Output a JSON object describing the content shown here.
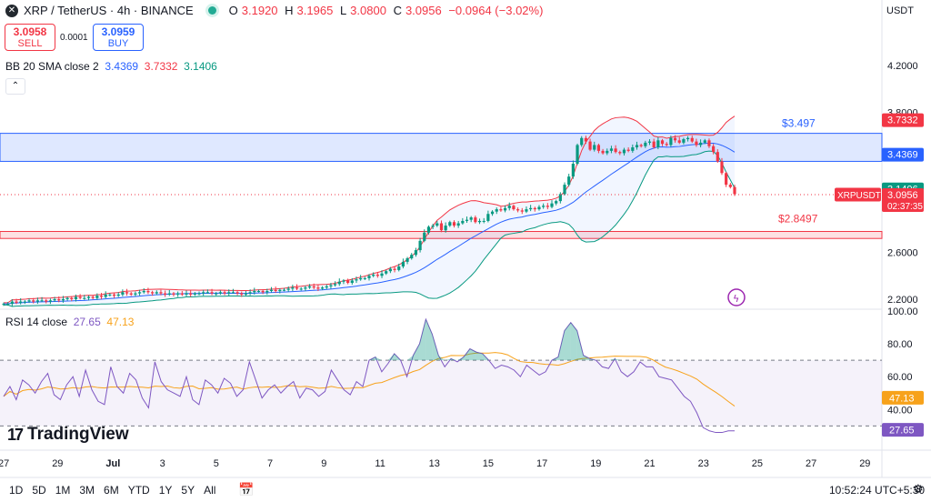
{
  "header": {
    "symbol_icon": "x-icon",
    "title": "XRP / TetherUS · 4h · BINANCE",
    "ohlc": [
      {
        "k": "O",
        "v": "3.1920"
      },
      {
        "k": "H",
        "v": "3.1965"
      },
      {
        "k": "L",
        "v": "3.0800"
      },
      {
        "k": "C",
        "v": "3.0956"
      }
    ],
    "change": "−0.0964 (−3.02%)"
  },
  "trade": {
    "sell_price": "3.0958",
    "sell_label": "SELL",
    "spread": "0.0001",
    "buy_price": "3.0959",
    "buy_label": "BUY"
  },
  "bb": {
    "label": "BB 20 SMA close 2",
    "v1": "3.4369",
    "v2": "3.7332",
    "v3": "3.1406"
  },
  "rsi": {
    "label": "RSI 14 close",
    "v1": "27.65",
    "v2": "47.13"
  },
  "currency": "USDT",
  "timeframes": [
    "1D",
    "5D",
    "1M",
    "3M",
    "6M",
    "YTD",
    "1Y",
    "5Y",
    "All"
  ],
  "clock": "10:52:24 UTC+5:30",
  "brand": "TradingView",
  "colors": {
    "up": "#089981",
    "down": "#f23645",
    "rsi": "#7e57c2",
    "rsi_ma": "#f7a21b",
    "basis": "#2962ff",
    "upper": "#f23645",
    "lower": "#089981"
  },
  "chart_data": {
    "type": "candlestick",
    "price_axis": {
      "ticks": [
        "4.2000",
        "3.8000",
        "2.6000",
        "2.2000"
      ],
      "ylim": [
        2.13,
        4.45
      ]
    },
    "rsi_axis": {
      "ticks": [
        "100.00",
        "80.00",
        "60.00",
        "40.00"
      ],
      "ylim": [
        18,
        100
      ],
      "band": [
        30,
        70
      ]
    },
    "x_ticks": [
      "27",
      "29",
      "Jul",
      "3",
      "5",
      "7",
      "9",
      "11",
      "13",
      "15",
      "17",
      "19",
      "21",
      "23",
      "25",
      "27",
      "29"
    ],
    "zones": [
      {
        "top": 3.62,
        "bottom": 3.38,
        "label": "$3.497",
        "color": "#2962ff"
      },
      {
        "top": 2.78,
        "bottom": 2.72,
        "label": "$2.8497",
        "color": "#f23645"
      }
    ],
    "price_labels": [
      {
        "text": "3.7332",
        "price": 3.7332,
        "color": "#f23645"
      },
      {
        "text": "3.4369",
        "price": 3.4369,
        "color": "#2962ff"
      },
      {
        "text": "3.1406",
        "price": 3.1406,
        "color": "#089981"
      },
      {
        "text": "3.0956",
        "sub": "02:37:35",
        "price": 3.0956,
        "color": "#f23645",
        "tag": "XRPUSDT"
      }
    ],
    "rsi_labels": [
      {
        "text": "47.13",
        "value": 47.13,
        "color": "#f7a21b"
      },
      {
        "text": "27.65",
        "value": 27.65,
        "color": "#7e57c2"
      }
    ],
    "close": [
      2.16,
      2.16,
      2.18,
      2.17,
      2.18,
      2.18,
      2.19,
      2.18,
      2.19,
      2.19,
      2.18,
      2.19,
      2.2,
      2.19,
      2.2,
      2.21,
      2.2,
      2.22,
      2.21,
      2.21,
      2.22,
      2.21,
      2.23,
      2.22,
      2.24,
      2.24,
      2.23,
      2.24,
      2.26,
      2.25,
      2.24,
      2.25,
      2.26,
      2.27,
      2.26,
      2.25,
      2.26,
      2.25,
      2.24,
      2.25,
      2.24,
      2.25,
      2.24,
      2.25,
      2.24,
      2.25,
      2.25,
      2.26,
      2.26,
      2.25,
      2.25,
      2.26,
      2.25,
      2.26,
      2.26,
      2.25,
      2.24,
      2.25,
      2.26,
      2.27,
      2.27,
      2.26,
      2.27,
      2.28,
      2.27,
      2.28,
      2.28,
      2.29,
      2.3,
      2.29,
      2.29,
      2.3,
      2.31,
      2.3,
      2.29,
      2.3,
      2.31,
      2.32,
      2.33,
      2.35,
      2.36,
      2.34,
      2.36,
      2.37,
      2.38,
      2.38,
      2.4,
      2.41,
      2.4,
      2.42,
      2.44,
      2.46,
      2.45,
      2.48,
      2.52,
      2.55,
      2.58,
      2.62,
      2.7,
      2.77,
      2.82,
      2.83,
      2.85,
      2.79,
      2.83,
      2.86,
      2.83,
      2.85,
      2.87,
      2.88,
      2.9,
      2.86,
      2.87,
      2.87,
      2.93,
      2.95,
      2.97,
      2.96,
      2.98,
      3.0,
      2.97,
      2.96,
      2.95,
      2.97,
      2.98,
      2.97,
      2.99,
      3.0,
      2.99,
      3.02,
      3.04,
      3.1,
      3.18,
      3.25,
      3.36,
      3.52,
      3.58,
      3.55,
      3.48,
      3.52,
      3.47,
      3.45,
      3.47,
      3.49,
      3.46,
      3.45,
      3.48,
      3.47,
      3.5,
      3.52,
      3.51,
      3.54,
      3.55,
      3.5,
      3.56,
      3.53,
      3.52,
      3.58,
      3.56,
      3.54,
      3.57,
      3.58,
      3.55,
      3.52,
      3.54,
      3.56,
      3.51,
      3.46,
      3.38,
      3.28,
      3.18,
      3.16,
      3.1
    ],
    "rsi": [
      48,
      54,
      46,
      58,
      55,
      50,
      57,
      62,
      49,
      46,
      55,
      60,
      48,
      64,
      52,
      45,
      43,
      66,
      54,
      50,
      62,
      58,
      47,
      41,
      69,
      57,
      52,
      50,
      48,
      60,
      46,
      43,
      58,
      55,
      50,
      59,
      56,
      48,
      52,
      69,
      58,
      47,
      52,
      55,
      50,
      54,
      57,
      47,
      53,
      52,
      48,
      51,
      64,
      58,
      52,
      49,
      57,
      54,
      70,
      72,
      63,
      68,
      74,
      70,
      60,
      73,
      80,
      95,
      86,
      73,
      66,
      71,
      69,
      72,
      77,
      75,
      74,
      70,
      65,
      67,
      66,
      64,
      60,
      67,
      64,
      61,
      63,
      70,
      72,
      88,
      93,
      88,
      73,
      71,
      70,
      66,
      65,
      71,
      63,
      60,
      63,
      69,
      66,
      66,
      60,
      59,
      58,
      53,
      48,
      45,
      38,
      29,
      27,
      26,
      26,
      27,
      27
    ]
  }
}
